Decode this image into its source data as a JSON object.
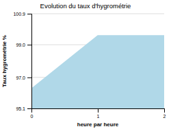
{
  "chart_data": {
    "type": "area",
    "title": "Evolution du taux d'hygrométrie",
    "xlabel": "heure par heure",
    "ylabel": "Taux hygrométrie %",
    "x": [
      0,
      1,
      2
    ],
    "values": [
      96.3,
      99.55,
      99.55
    ],
    "color": "#b0d8e8",
    "xlim": [
      0,
      2
    ],
    "xticks": [
      0,
      1,
      2
    ],
    "ylim": [
      95.1,
      100.9
    ],
    "yticks": [
      95.1,
      {
        "value": 97.0,
        "label": "97.0"
      },
      {
        "value": 99.0,
        "label": "99.0"
      },
      100.9
    ],
    "grid": true
  }
}
